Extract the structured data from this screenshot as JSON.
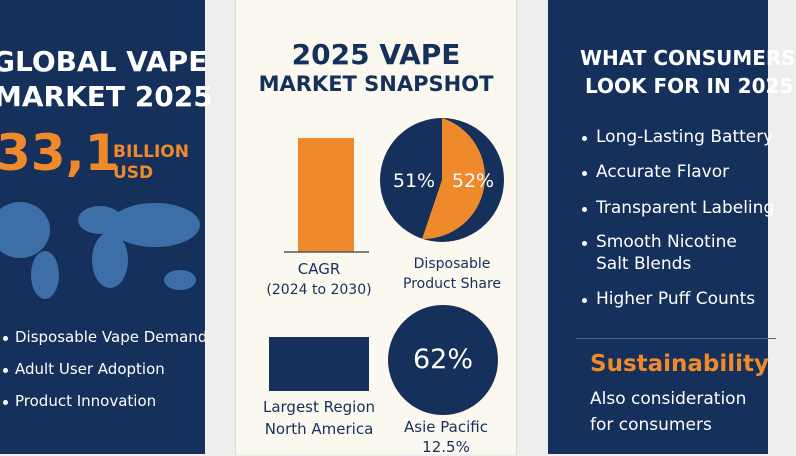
{
  "left": {
    "title_lines": [
      "GLOBAL VAPE",
      "MARKET 2025"
    ],
    "amount": "33,1",
    "unit_lines": [
      "BILLION",
      "USD"
    ],
    "bullets": [
      "Disposable Vape Demand",
      "Adult User Adoption",
      "Product Innovation"
    ]
  },
  "middle": {
    "title_lines": [
      "2025 VAPE",
      "MARKET SNAPSHOT"
    ],
    "cagr": {
      "label": "CAGR",
      "sub": "(2024 to 2030)"
    },
    "share": {
      "left_label": "51%",
      "right_label": "52%",
      "caption_lines": [
        "Disposable",
        "Product Share"
      ]
    },
    "region": {
      "caption_lines": [
        "Largest Region",
        "North America"
      ]
    },
    "apac": {
      "value": "62%",
      "caption_lines": [
        "Asie Pacific",
        "12.5%"
      ]
    }
  },
  "right": {
    "title_lines": [
      "WHAT CONSUMERS",
      "LOOK FOR IN 2025"
    ],
    "bullets": [
      [
        "Long-Lasting Battery"
      ],
      [
        "Accurate Flavor"
      ],
      [
        "Transparent Labeling"
      ],
      [
        "Smooth Nicotine",
        "Salt Blends"
      ],
      [
        "Higher Puff Counts"
      ]
    ],
    "highlight": "Sustainability",
    "note_lines": [
      "Also consideration",
      "for consumers"
    ]
  }
}
